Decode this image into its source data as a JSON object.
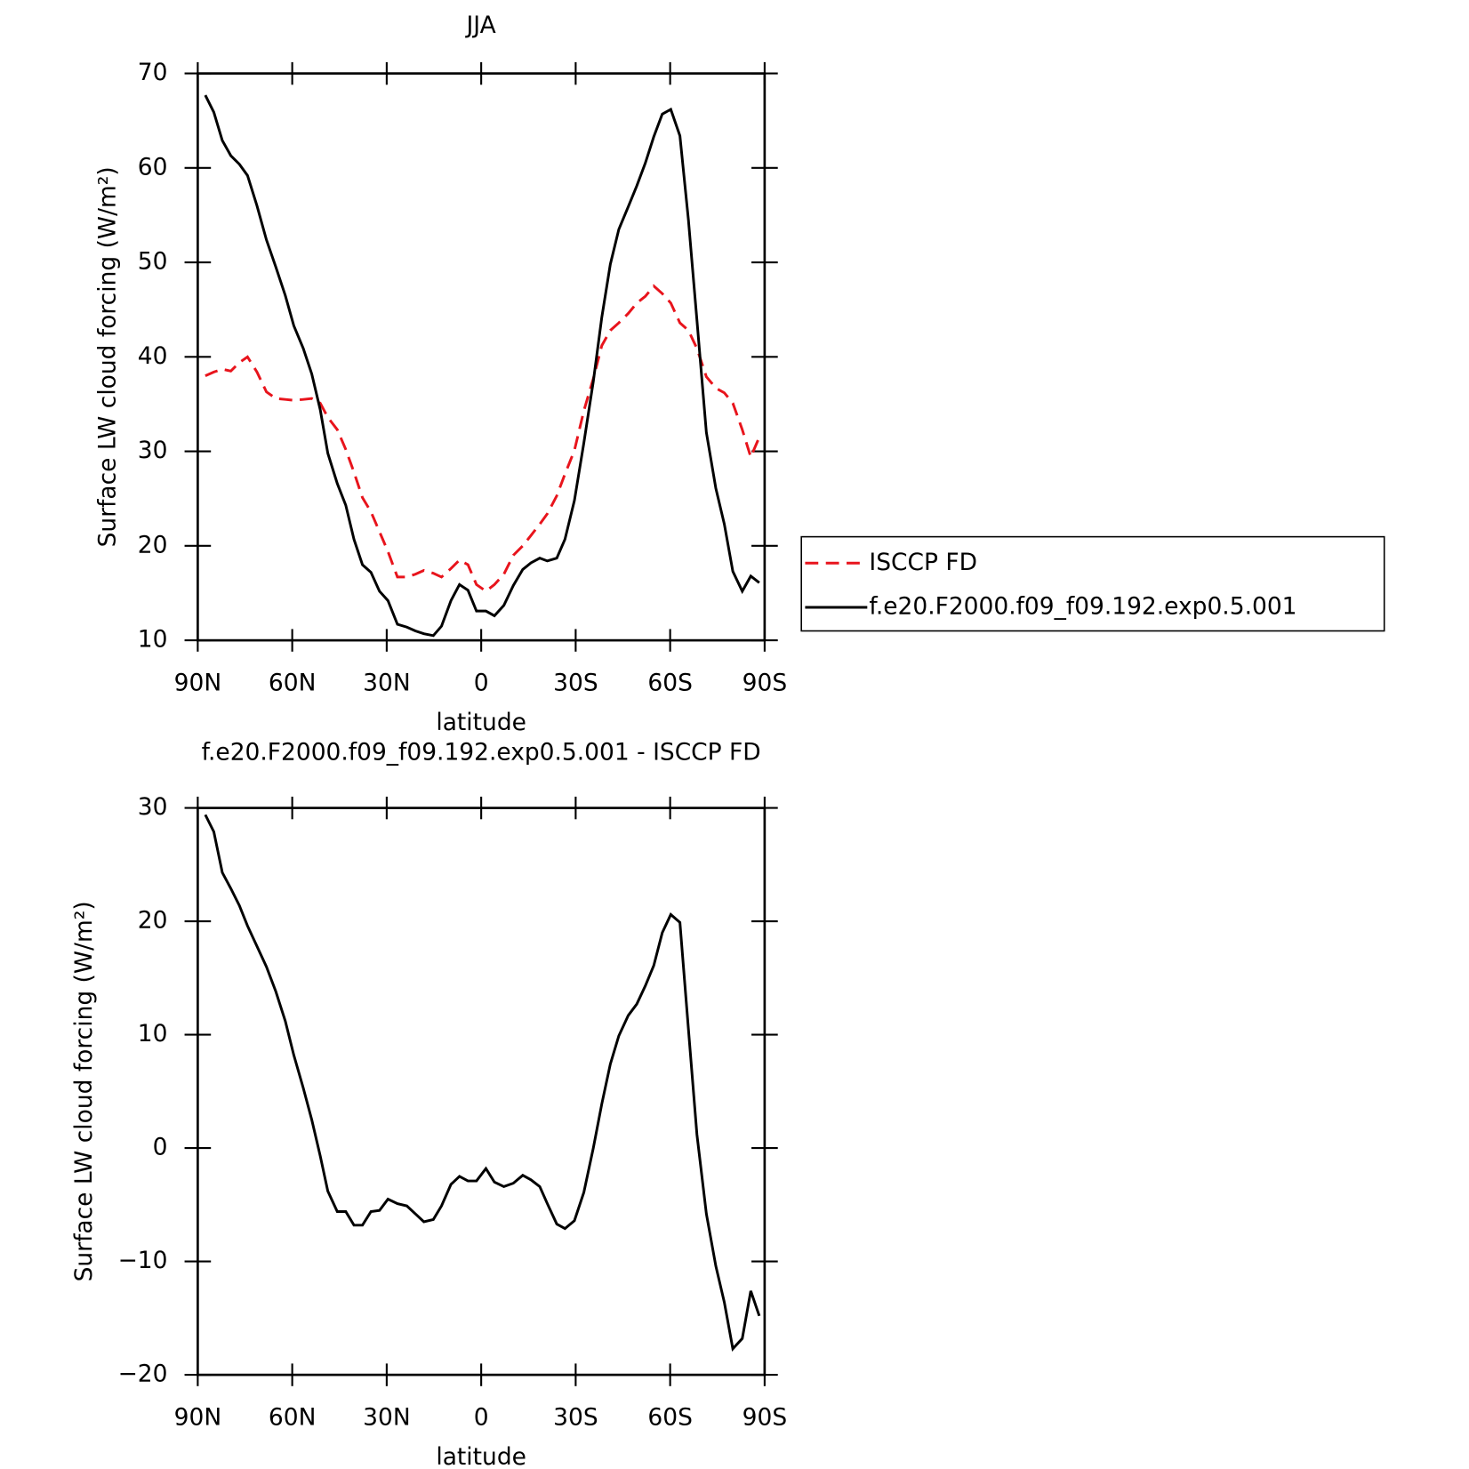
{
  "chart_data": [
    {
      "type": "line",
      "title": "JJA",
      "xlabel": "latitude",
      "ylabel": "Surface LW cloud forcing (W/m²)",
      "x": [
        87.6,
        84.9,
        82.2,
        79.5,
        76.8,
        74.2,
        71.2,
        68.2,
        65.2,
        62.2,
        59.5,
        56.5,
        53.8,
        51.1,
        48.7,
        45.7,
        43.0,
        40.4,
        37.7,
        35.0,
        32.3,
        29.6,
        26.6,
        23.6,
        20.9,
        18.2,
        15.2,
        12.6,
        9.6,
        6.9,
        4.2,
        1.5,
        -1.5,
        -4.2,
        -7.2,
        -10.2,
        -13.2,
        -15.8,
        -18.6,
        -21.0,
        -24.0,
        -26.6,
        -29.6,
        -32.6,
        -35.6,
        -38.3,
        -41.0,
        -43.7,
        -46.7,
        -49.4,
        -52.1,
        -54.8,
        -57.5,
        -60.2,
        -63.1,
        -65.8,
        -68.5,
        -71.5,
        -74.5,
        -77.2,
        -79.9,
        -82.9,
        -85.6,
        -88.3
      ],
      "series": [
        {
          "name": "ISCCP FD",
          "color": "#e8141c",
          "line_style": "dashed",
          "values": [
            38.0,
            38.4,
            38.7,
            38.5,
            39.4,
            40.0,
            38.4,
            36.3,
            35.6,
            35.5,
            35.4,
            35.5,
            35.6,
            35.1,
            33.6,
            32.3,
            30.2,
            27.8,
            25.1,
            23.6,
            21.5,
            19.4,
            16.7,
            16.7,
            17.0,
            17.4,
            17.1,
            16.7,
            17.6,
            18.5,
            18.0,
            15.9,
            15.2,
            15.9,
            17.0,
            19.0,
            20.0,
            21.1,
            22.3,
            23.4,
            25.3,
            27.6,
            30.1,
            34.3,
            37.7,
            41.2,
            42.8,
            43.6,
            44.6,
            45.7,
            46.4,
            47.5,
            46.7,
            45.7,
            43.6,
            42.8,
            40.9,
            37.9,
            36.7,
            36.2,
            35.1,
            32.3,
            29.4,
            31.5
          ]
        },
        {
          "name": "f.e20.F2000.f09_f09.192.exp0.5.001",
          "color": "#000000",
          "line_style": "solid",
          "values": [
            67.7,
            65.9,
            62.9,
            61.3,
            60.4,
            59.2,
            56.0,
            52.4,
            49.5,
            46.5,
            43.3,
            40.9,
            38.2,
            34.4,
            29.8,
            26.6,
            24.3,
            20.7,
            18.0,
            17.2,
            15.2,
            14.2,
            11.7,
            11.4,
            11.0,
            10.7,
            10.5,
            11.5,
            14.2,
            15.9,
            15.3,
            13.1,
            13.1,
            12.6,
            13.7,
            15.8,
            17.5,
            18.2,
            18.7,
            18.4,
            18.7,
            20.7,
            24.8,
            30.9,
            37.4,
            44.2,
            49.8,
            53.5,
            55.9,
            58.1,
            60.5,
            63.3,
            65.7,
            66.2,
            63.4,
            54.5,
            43.9,
            32.0,
            26.1,
            22.3,
            17.3,
            15.2,
            16.8,
            16.1
          ]
        }
      ],
      "xlim": [
        90,
        -90
      ],
      "xticks": [
        {
          "value": 90,
          "label": "90N"
        },
        {
          "value": 60,
          "label": "60N"
        },
        {
          "value": 30,
          "label": "30N"
        },
        0,
        {
          "value": -30,
          "label": "30S"
        },
        {
          "value": -60,
          "label": "60S"
        },
        {
          "value": -90,
          "label": "90S"
        }
      ],
      "ylim": [
        10,
        70
      ],
      "yticks": [
        10,
        20,
        30,
        40,
        50,
        60,
        70
      ],
      "legend": "right"
    },
    {
      "type": "line",
      "title": "f.e20.F2000.f09_f09.192.exp0.5.001 - ISCCP FD",
      "xlabel": "latitude",
      "ylabel": "Surface LW cloud forcing (W/m²)",
      "x": [
        87.6,
        84.9,
        82.2,
        79.5,
        76.8,
        74.2,
        71.2,
        68.2,
        65.2,
        62.2,
        59.5,
        56.5,
        53.8,
        51.1,
        48.7,
        45.7,
        43.0,
        40.4,
        37.7,
        35.0,
        32.3,
        29.6,
        26.6,
        23.6,
        20.9,
        18.2,
        15.2,
        12.6,
        9.6,
        6.9,
        4.2,
        1.5,
        -1.5,
        -4.2,
        -7.2,
        -10.2,
        -13.2,
        -15.8,
        -18.6,
        -21.0,
        -24.0,
        -26.6,
        -29.6,
        -32.6,
        -35.6,
        -38.3,
        -41.0,
        -43.7,
        -46.7,
        -49.4,
        -52.1,
        -54.8,
        -57.5,
        -60.2,
        -63.1,
        -65.8,
        -68.5,
        -71.5,
        -74.5,
        -77.2,
        -79.9,
        -82.9,
        -85.6,
        -88.3
      ],
      "color": "#000000",
      "values": [
        29.4,
        27.9,
        24.3,
        22.9,
        21.4,
        19.6,
        17.8,
        16.0,
        13.8,
        11.2,
        8.2,
        5.3,
        2.5,
        -0.7,
        -3.8,
        -5.6,
        -5.6,
        -6.8,
        -6.8,
        -5.6,
        -5.5,
        -4.5,
        -4.9,
        -5.1,
        -5.8,
        -6.5,
        -6.3,
        -5.1,
        -3.2,
        -2.5,
        -2.9,
        -2.9,
        -1.8,
        -3.0,
        -3.4,
        -3.1,
        -2.4,
        -2.8,
        -3.4,
        -4.9,
        -6.7,
        -7.1,
        -6.4,
        -3.9,
        0.0,
        3.9,
        7.4,
        9.9,
        11.7,
        12.7,
        14.3,
        16.1,
        19.0,
        20.6,
        19.9,
        10.5,
        1.2,
        -5.8,
        -10.4,
        -13.6,
        -17.7,
        -16.8,
        -12.6,
        -14.8
      ],
      "xlim": [
        90,
        -90
      ],
      "xticks": [
        {
          "value": 90,
          "label": "90N"
        },
        {
          "value": 60,
          "label": "60N"
        },
        {
          "value": 30,
          "label": "30N"
        },
        0,
        {
          "value": -30,
          "label": "30S"
        },
        {
          "value": -60,
          "label": "60S"
        },
        {
          "value": -90,
          "label": "90S"
        }
      ],
      "ylim": [
        -20,
        30
      ],
      "yticks": [
        {
          "value": -20,
          "label": "−20"
        },
        {
          "value": -10,
          "label": "−10"
        },
        0,
        10,
        20,
        30
      ]
    }
  ]
}
